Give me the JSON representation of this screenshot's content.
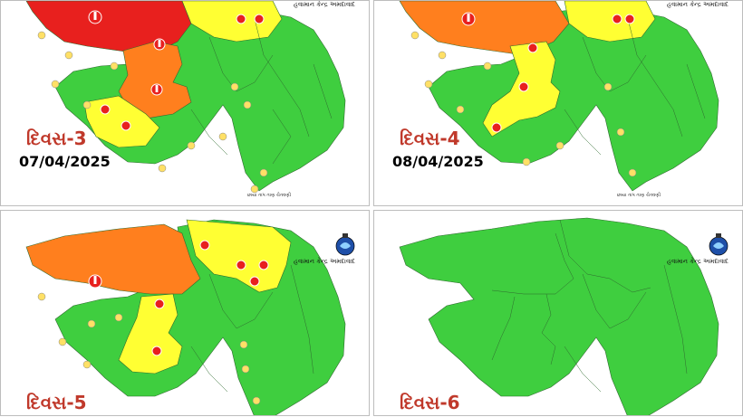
{
  "colors": {
    "green": "#3fce3f",
    "yellow": "#ffff33",
    "orange": "#ff7f1e",
    "red": "#e8201e",
    "district_border": "#2f6b2f",
    "day_label": "#c0392b"
  },
  "office_name": "હવામાન કેન્દ્ર અમદાવાદ",
  "credit": "છાયા તાપ તાણ ચેતવણી",
  "panels": [
    {
      "day": "દિવસ-3",
      "date": "07/04/2025"
    },
    {
      "day": "દિવસ-4",
      "date": "08/04/2025"
    },
    {
      "day": "દિવસ-5",
      "date": ""
    },
    {
      "day": "દિવસ-6",
      "date": ""
    }
  ],
  "icons": {
    "thermometer": "thermometer-icon",
    "port": "port-marker-icon",
    "emblem": "imd-emblem-icon"
  }
}
